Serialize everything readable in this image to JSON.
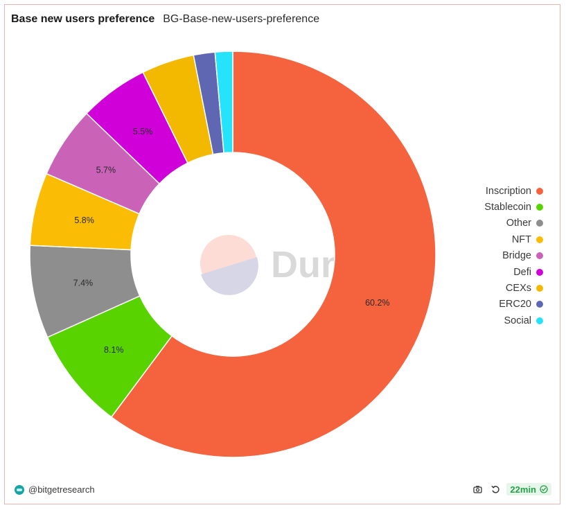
{
  "header": {
    "title": "Base new users preference",
    "subtitle": "BG-Base-new-users-preference"
  },
  "watermark": {
    "text": "Dune"
  },
  "footer": {
    "author": "@bitgetresearch",
    "refresh_age": "22min",
    "icons": [
      "camera-icon",
      "refresh-icon",
      "check-circle-icon"
    ]
  },
  "chart_data": {
    "type": "pie",
    "donut": true,
    "legend_position": "right",
    "slices": [
      {
        "name": "Inscription",
        "value": 60.2,
        "label": "60.2%",
        "color": "#f4623e"
      },
      {
        "name": "Stablecoin",
        "value": 8.1,
        "label": "8.1%",
        "color": "#58d300"
      },
      {
        "name": "Other",
        "value": 7.4,
        "label": "7.4%",
        "color": "#8e8e8e"
      },
      {
        "name": "NFT",
        "value": 5.8,
        "label": "5.8%",
        "color": "#fbbc05"
      },
      {
        "name": "Bridge",
        "value": 5.7,
        "label": "5.7%",
        "color": "#ca63b8"
      },
      {
        "name": "Defi",
        "value": 5.5,
        "label": "5.5%",
        "color": "#d000d8"
      },
      {
        "name": "CEXs",
        "value": 4.2,
        "label": "",
        "color": "#f3b900"
      },
      {
        "name": "ERC20",
        "value": 1.7,
        "label": "",
        "color": "#5f67b3"
      },
      {
        "name": "Social",
        "value": 1.4,
        "label": "",
        "color": "#25e3fb"
      }
    ]
  }
}
